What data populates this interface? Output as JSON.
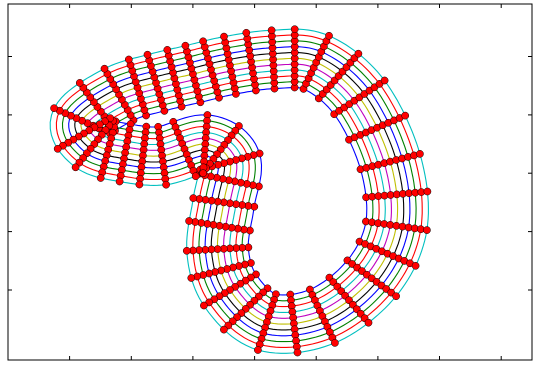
{
  "chart_data": {
    "type": "line",
    "title": "",
    "xlabel": "",
    "ylabel": "",
    "xlim": [
      -1.0,
      7.5
    ],
    "ylim": [
      -1.2,
      4.9
    ],
    "grid": false,
    "legend": "none",
    "x_ticks": [
      0.0,
      1.0,
      2.0,
      3.0,
      4.0,
      5.0,
      6.0,
      7.0
    ],
    "y_ticks": [
      0.0,
      1.0,
      2.0,
      3.0,
      4.0,
      5.0
    ],
    "centerline": [
      [
        0.2,
        2.9
      ],
      [
        0.8,
        3.35
      ],
      [
        1.4,
        3.55
      ],
      [
        2.0,
        3.7
      ],
      [
        2.6,
        3.85
      ],
      [
        3.3,
        3.95
      ],
      [
        4.0,
        3.9
      ],
      [
        4.7,
        3.3
      ],
      [
        5.2,
        2.2
      ],
      [
        5.3,
        1.1
      ],
      [
        4.9,
        0.2
      ],
      [
        4.1,
        -0.45
      ],
      [
        3.2,
        -0.55
      ],
      [
        2.6,
        0.0
      ],
      [
        2.4,
        0.7
      ],
      [
        2.5,
        1.5
      ],
      [
        2.6,
        2.2
      ],
      [
        2.2,
        2.5
      ],
      [
        1.5,
        2.3
      ],
      [
        0.9,
        2.35
      ],
      [
        0.4,
        2.5
      ]
    ],
    "offsets": [
      -0.5,
      -0.4,
      -0.3,
      -0.2,
      -0.1,
      0.0,
      0.1,
      0.2,
      0.3,
      0.4,
      0.5
    ],
    "series_colors": [
      "#0000ff",
      "#008000",
      "#ff0000",
      "#00bfbf",
      "#bf00bf",
      "#bfbf00",
      "#000000",
      "#0000ff",
      "#008000",
      "#ff0000",
      "#00bfbf",
      "#bfbf00"
    ],
    "marker_color": "#ff0000",
    "marker_edge": "#000000"
  }
}
